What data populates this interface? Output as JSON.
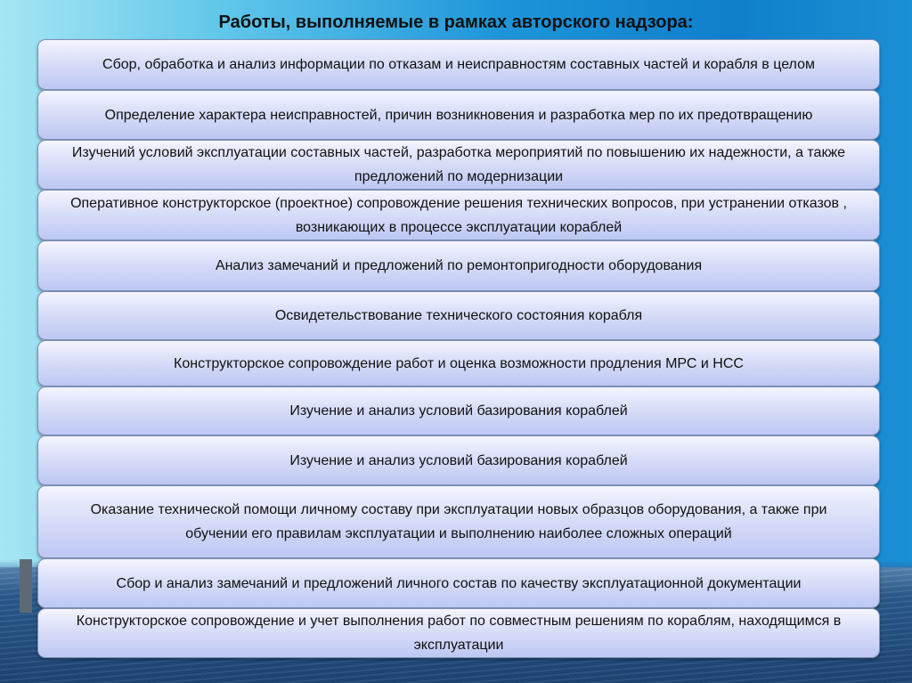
{
  "title": "Работы, выполняемые в рамках авторского надзора:",
  "items": [
    "Сбор, обработка и анализ информации по отказам и неисправностям составных частей и корабля в целом",
    "Определение характера неисправностей, причин возникновения и разработка мер по их предотвращению",
    "Изучений условий эксплуатации составных частей, разработка мероприятий по повышению их надежности, а также предложений по модернизации",
    "Оперативное конструкторское (проектное) сопровождение решения технических вопросов, при устранении отказов , возникающих в процессе эксплуатации кораблей",
    "Анализ замечаний и предложений по ремонтопригодности оборудования",
    "Освидетельствование технического состояния корабля",
    "Конструкторское сопровождение работ и оценка возможности продления МРС и НСС",
    "Изучение и анализ условий базирования кораблей",
    "Изучение и анализ условий базирования кораблей",
    "Оказание технической помощи личному составу при эксплуатации новых образцов оборудования, а также при обучении его правилам эксплуатации и выполнению наиболее сложных операций",
    "Сбор и анализ замечаний и предложений личного состав по качеству эксплуатационной документации",
    "Конструкторское сопровождение и учет выполнения работ по совместным решениям по кораблям, находящимся в эксплуатации"
  ]
}
